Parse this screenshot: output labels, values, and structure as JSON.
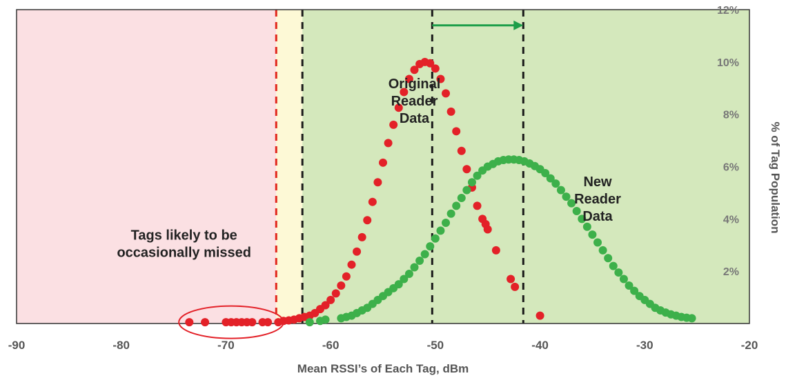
{
  "chart_data": {
    "type": "scatter",
    "title": "",
    "xlabel": "Mean RSSI’s of Each Tag, dBm",
    "ylabel": "% of Tag Population",
    "xlim": [
      -90,
      -20
    ],
    "ylim": [
      0,
      12
    ],
    "x_ticks": [
      "-90",
      "-80",
      "-70",
      "-60",
      "-50",
      "-40",
      "-30",
      "-20"
    ],
    "y_ticks": [
      "2%",
      "4%",
      "6%",
      "8%",
      "10%",
      "12%"
    ],
    "y_tick_values": [
      2,
      4,
      6,
      8,
      10,
      12
    ],
    "x_tick_values": [
      -90,
      -80,
      -70,
      -60,
      -50,
      -40,
      -30,
      -20
    ],
    "regions": [
      {
        "name": "missed-zone",
        "from": -90,
        "to": -65.2,
        "color": "#fbe0e3"
      },
      {
        "name": "marginal-zone",
        "from": -65.2,
        "to": -62.7,
        "color": "#fdf9d6"
      },
      {
        "name": "good-zone",
        "from": -62.7,
        "to": -20,
        "color": "#d4e8bc"
      }
    ],
    "reference_lines": [
      {
        "x": -65.2,
        "color": "#e1261c"
      },
      {
        "x": -62.7,
        "color": "#1a1a1a"
      },
      {
        "x": -50.3,
        "color": "#1a1a1a"
      },
      {
        "x": -41.6,
        "color": "#1a1a1a"
      }
    ],
    "shift_arrow": {
      "from": -50.3,
      "to": -41.6,
      "y": 11.4,
      "color": "#1d9e49"
    },
    "series": [
      {
        "name": "Original Reader Data",
        "color": "#e32128",
        "x": [
          -73.5,
          -72,
          -70,
          -69.5,
          -69,
          -68.5,
          -68,
          -67.5,
          -66.5,
          -66,
          -65,
          -64.5,
          -64,
          -63.5,
          -63,
          -62.5,
          -62,
          -61.5,
          -61,
          -60.5,
          -60,
          -59.5,
          -59,
          -58.5,
          -58,
          -57.5,
          -57,
          -56.5,
          -56,
          -55.5,
          -55,
          -54.5,
          -54,
          -53.5,
          -53,
          -52.5,
          -52,
          -51.5,
          -51,
          -50.5,
          -50,
          -49.5,
          -49,
          -48.5,
          -48,
          -47.5,
          -47,
          -46.5,
          -46,
          -45.5,
          -45.2,
          -45,
          -44.2,
          -42.8,
          -42.4,
          -40
        ],
        "y": [
          0.05,
          0.05,
          0.05,
          0.05,
          0.05,
          0.05,
          0.05,
          0.05,
          0.05,
          0.05,
          0.05,
          0.1,
          0.12,
          0.15,
          0.2,
          0.25,
          0.3,
          0.4,
          0.55,
          0.7,
          0.9,
          1.15,
          1.45,
          1.8,
          2.25,
          2.75,
          3.3,
          3.95,
          4.65,
          5.4,
          6.15,
          6.9,
          7.6,
          8.25,
          8.85,
          9.35,
          9.7,
          9.92,
          10.0,
          9.95,
          9.75,
          9.35,
          8.8,
          8.1,
          7.35,
          6.6,
          5.9,
          5.2,
          4.5,
          4.0,
          3.8,
          3.6,
          2.8,
          1.7,
          1.4,
          0.3
        ]
      },
      {
        "name": "New Reader Data",
        "color": "#3db04a",
        "x": [
          -62,
          -61,
          -60.5,
          -59,
          -58.5,
          -58,
          -57.5,
          -57,
          -56.5,
          -56,
          -55.5,
          -55,
          -54.5,
          -54,
          -53.5,
          -53,
          -52.5,
          -52,
          -51.5,
          -51,
          -50.5,
          -50,
          -49.5,
          -49,
          -48.5,
          -48,
          -47.5,
          -47,
          -46.5,
          -46,
          -45.5,
          -45,
          -44.5,
          -44,
          -43.5,
          -43,
          -42.5,
          -42,
          -41.5,
          -41,
          -40.5,
          -40,
          -39.5,
          -39,
          -38.5,
          -38,
          -37.5,
          -37,
          -36.5,
          -36,
          -35.5,
          -35,
          -34.5,
          -34,
          -33.5,
          -33,
          -32.5,
          -32,
          -31.5,
          -31,
          -30.5,
          -30,
          -29.5,
          -29,
          -28.5,
          -28,
          -27.5,
          -27,
          -26.5,
          -26,
          -25.5
        ],
        "y": [
          0.05,
          0.1,
          0.15,
          0.2,
          0.25,
          0.3,
          0.4,
          0.5,
          0.6,
          0.75,
          0.9,
          1.05,
          1.2,
          1.35,
          1.5,
          1.7,
          1.9,
          2.15,
          2.4,
          2.65,
          2.95,
          3.25,
          3.55,
          3.85,
          4.2,
          4.5,
          4.8,
          5.1,
          5.4,
          5.65,
          5.85,
          6.0,
          6.1,
          6.2,
          6.25,
          6.27,
          6.27,
          6.25,
          6.2,
          6.12,
          6.02,
          5.9,
          5.75,
          5.55,
          5.35,
          5.1,
          4.85,
          4.6,
          4.3,
          4.0,
          3.7,
          3.4,
          3.1,
          2.8,
          2.5,
          2.2,
          1.95,
          1.7,
          1.45,
          1.25,
          1.05,
          0.9,
          0.75,
          0.6,
          0.5,
          0.42,
          0.35,
          0.3,
          0.25,
          0.22,
          0.2
        ]
      }
    ],
    "annotations": [
      {
        "name": "original-label",
        "lines": [
          "Original",
          "Reader",
          "Data"
        ],
        "x": -52,
        "y": 9.0,
        "anchor": "middle"
      },
      {
        "name": "new-label",
        "lines": [
          "New",
          "Reader",
          "Data"
        ],
        "x": -34.5,
        "y": 5.25,
        "anchor": "middle"
      },
      {
        "name": "missed-label",
        "lines": [
          "Tags likely to be",
          "occasionally missed"
        ],
        "x": -74,
        "y": 3.2,
        "anchor": "middle"
      }
    ],
    "missed_tags_ellipse": {
      "cx": -69.5,
      "cy": 0.05,
      "rx": 5.0,
      "ry": 0.62,
      "color": "#e32128"
    }
  }
}
